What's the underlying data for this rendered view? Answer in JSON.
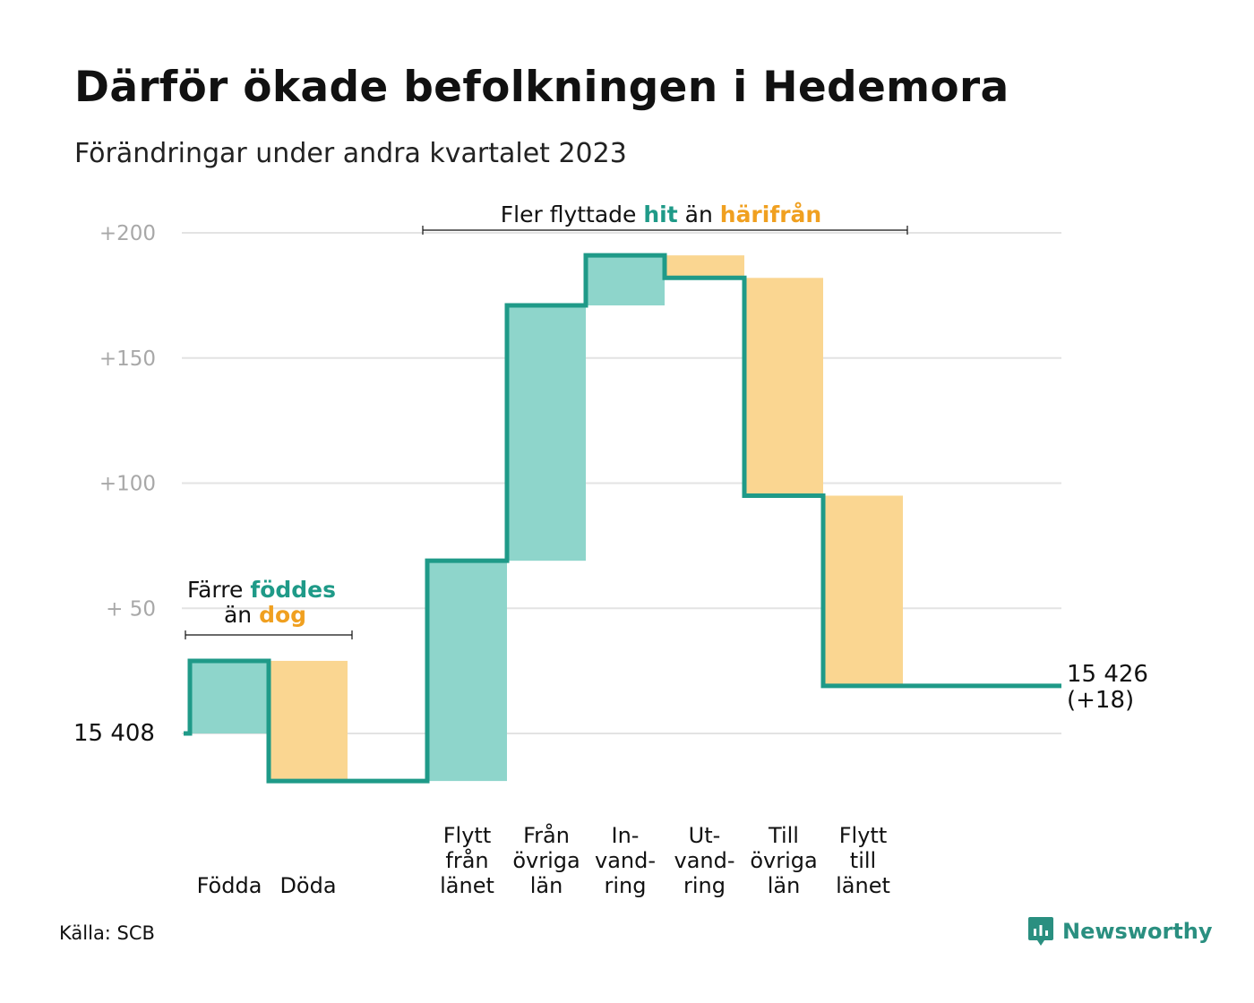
{
  "title": "Därför ökade befolkningen i Hedemora",
  "subtitle": "Förändringar under andra kvartalet 2023",
  "source": "Källa: SCB",
  "brand": "Newsworthy",
  "colors": {
    "line": "#1f9a88",
    "increase": "#8ed5cb",
    "decrease": "#fad691",
    "grid": "#e3e3e3",
    "tick": "#a8a8a8",
    "text": "#111111",
    "accent_in": "#1f9a88",
    "accent_out": "#f0a020"
  },
  "chart_data": {
    "type": "waterfall",
    "start_label": "15  408",
    "end_label_1": "15 426",
    "end_label_2": "(+18)",
    "start_value": 0,
    "end_value": 18,
    "y_ticks": [
      {
        "value": 50,
        "label": "+  50"
      },
      {
        "value": 100,
        "label": "+100"
      },
      {
        "value": 150,
        "label": "+150"
      },
      {
        "value": 200,
        "label": "+200"
      }
    ],
    "ylim": [
      -25,
      205
    ],
    "steps": [
      {
        "name": "Födda",
        "lines": [
          "Födda"
        ],
        "value": 29
      },
      {
        "name": "Döda",
        "lines": [
          "Döda"
        ],
        "value": -48
      },
      {
        "name": "Flytt från länet",
        "lines": [
          "Flytt",
          "från",
          "länet"
        ],
        "value": 88
      },
      {
        "name": "Från övriga län",
        "lines": [
          "Från",
          "övriga",
          "län"
        ],
        "value": 102
      },
      {
        "name": "Invandring",
        "lines": [
          "In-",
          "vand-",
          "ring"
        ],
        "value": 20
      },
      {
        "name": "Utvandring",
        "lines": [
          "Ut-",
          "vand-",
          "ring"
        ],
        "value": -9
      },
      {
        "name": "Till övriga län",
        "lines": [
          "Till",
          "övriga",
          "län"
        ],
        "value": -87
      },
      {
        "name": "Flytt till länet",
        "lines": [
          "Flytt",
          "till",
          "länet"
        ],
        "value": -76
      }
    ],
    "annotations": [
      {
        "parts": [
          "Färre ",
          "föddes"
        ],
        "line2": [
          "än ",
          "dog"
        ]
      },
      {
        "parts": [
          "Fler flyttade ",
          "hit",
          " än ",
          "härifrån"
        ]
      }
    ]
  }
}
